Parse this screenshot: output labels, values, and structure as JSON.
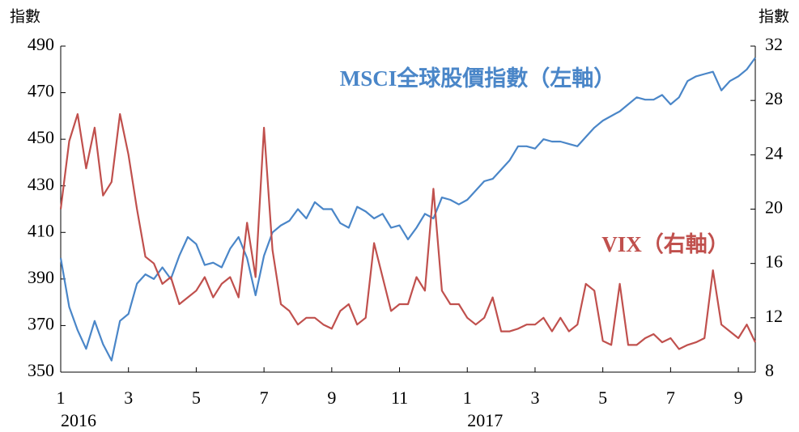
{
  "chart_data": {
    "type": "line",
    "y_label": "指數",
    "y2_label": "指數",
    "x": [
      0,
      0.25,
      0.5,
      0.75,
      1,
      1.25,
      1.5,
      1.75,
      2,
      2.25,
      2.5,
      2.75,
      3,
      3.25,
      3.5,
      3.75,
      4,
      4.25,
      4.5,
      4.75,
      5,
      5.25,
      5.5,
      5.75,
      6,
      6.25,
      6.5,
      6.75,
      7,
      7.25,
      7.5,
      7.75,
      8,
      8.25,
      8.5,
      8.75,
      9,
      9.25,
      9.5,
      9.75,
      10,
      10.25,
      10.5,
      10.75,
      11,
      11.25,
      11.5,
      11.75,
      12,
      12.25,
      12.5,
      12.75,
      13,
      13.25,
      13.5,
      13.75,
      14,
      14.25,
      14.5,
      14.75,
      15,
      15.25,
      15.5,
      15.75,
      16,
      16.25,
      16.5,
      16.75,
      17,
      17.25,
      17.5,
      17.75,
      18,
      18.25,
      18.5,
      18.75,
      19,
      19.25,
      19.5,
      19.75,
      20,
      20.25,
      20.5
    ],
    "xlim": [
      0,
      20.5
    ],
    "xticks": [
      {
        "value": 0,
        "label": "1"
      },
      {
        "value": 2,
        "label": "3"
      },
      {
        "value": 4,
        "label": "5"
      },
      {
        "value": 6,
        "label": "7"
      },
      {
        "value": 8,
        "label": "9"
      },
      {
        "value": 10,
        "label": "11"
      },
      {
        "value": 12,
        "label": "1"
      },
      {
        "value": 14,
        "label": "3"
      },
      {
        "value": 16,
        "label": "5"
      },
      {
        "value": 18,
        "label": "7"
      },
      {
        "value": 20,
        "label": "9"
      }
    ],
    "year_labels": [
      {
        "value": 0,
        "label": "2016"
      },
      {
        "value": 12,
        "label": "2017"
      }
    ],
    "ylim": [
      350,
      490
    ],
    "yticks": [
      350,
      370,
      390,
      410,
      430,
      450,
      470,
      490
    ],
    "y2lim": [
      8,
      32
    ],
    "y2ticks": [
      8,
      12,
      16,
      20,
      24,
      28,
      32
    ],
    "series": [
      {
        "name": "MSCI全球股價指數（左軸）",
        "color": "#4a86c8",
        "values": [
          399,
          378,
          368,
          360,
          372,
          362,
          355,
          372,
          375,
          388,
          392,
          390,
          395,
          390,
          400,
          408,
          405,
          396,
          397,
          395,
          403,
          408,
          399,
          383,
          400,
          410,
          413,
          415,
          420,
          416,
          423,
          420,
          420,
          414,
          412,
          421,
          419,
          416,
          418,
          412,
          413,
          407,
          412,
          418,
          416,
          425,
          424,
          422,
          424,
          428,
          432,
          433,
          437,
          441,
          447,
          447,
          446,
          450,
          449,
          449,
          448,
          447,
          451,
          455,
          458,
          460,
          462,
          465,
          468,
          467,
          467,
          469,
          465,
          468,
          475,
          477,
          478,
          479,
          471,
          475,
          477,
          480,
          485
        ]
      },
      {
        "name": "VIX（右軸）",
        "color": "#c0504d",
        "axis": "y2",
        "values": [
          20,
          25,
          27,
          23,
          26,
          21,
          22,
          27,
          24,
          20,
          16.5,
          16,
          14.5,
          15,
          13,
          13.5,
          14,
          15,
          13.5,
          14.5,
          15,
          13.5,
          19,
          15,
          26,
          17,
          13,
          12.5,
          11.5,
          12,
          12,
          11.5,
          11.2,
          12.5,
          13,
          11.5,
          12,
          17.5,
          15,
          12.5,
          13,
          13,
          15,
          14,
          21.5,
          14,
          13,
          13,
          12,
          11.5,
          12,
          13.5,
          11,
          11,
          11.2,
          11.5,
          11.5,
          12,
          11,
          12,
          11,
          11.5,
          14.5,
          14,
          10.3,
          10,
          14.5,
          10,
          10,
          10.5,
          10.8,
          10.2,
          10.5,
          9.7,
          10,
          10.2,
          10.5,
          15.5,
          11.5,
          11,
          10.5,
          11.5,
          10.2
        ]
      }
    ]
  }
}
